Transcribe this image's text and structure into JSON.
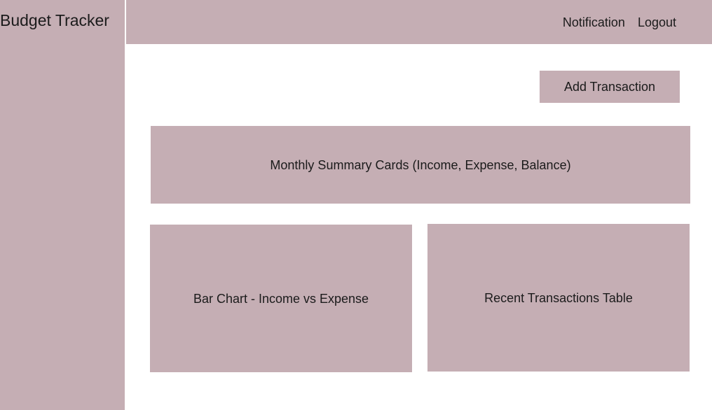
{
  "app": {
    "title": "Budget Tracker"
  },
  "topbar": {
    "notification_label": "Notification",
    "logout_label": "Logout"
  },
  "actions": {
    "add_transaction_label": "Add Transaction"
  },
  "main": {
    "summary_label": "Monthly Summary Cards (Income, Expense, Balance)",
    "bar_chart_label": "Bar Chart - Income vs Expense",
    "transactions_label": "Recent Transactions Table"
  },
  "colors": {
    "placeholder_fill": "#c5aeb4",
    "background": "#ffffff",
    "text": "#1b1b1b"
  }
}
